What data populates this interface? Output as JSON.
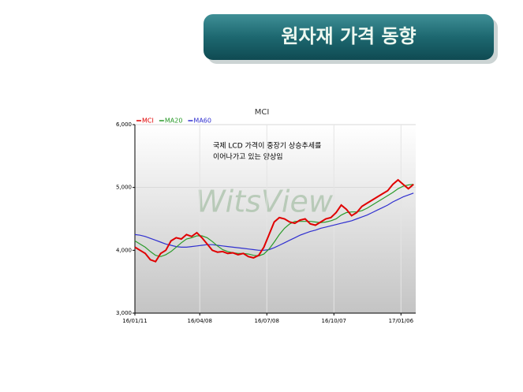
{
  "header": {
    "title": "원자재 가격 동향"
  },
  "chart_data": {
    "type": "line",
    "title": "MCI",
    "watermark": "WitsView",
    "annotations": [
      "국제 LCD 가격이 중장기 상승추세를",
      "이어나가고 있는 양상임"
    ],
    "x": [
      "16/01/11",
      "16/01/18",
      "16/01/25",
      "16/02/01",
      "16/02/08",
      "16/02/15",
      "16/02/22",
      "16/02/29",
      "16/03/07",
      "16/03/14",
      "16/03/21",
      "16/03/28",
      "16/04/04",
      "16/04/11",
      "16/04/18",
      "16/04/25",
      "16/05/02",
      "16/05/09",
      "16/05/16",
      "16/05/23",
      "16/05/30",
      "16/06/06",
      "16/06/13",
      "16/06/20",
      "16/06/27",
      "16/07/04",
      "16/07/11",
      "16/07/18",
      "16/07/25",
      "16/08/01",
      "16/08/08",
      "16/08/15",
      "16/08/22",
      "16/08/29",
      "16/09/05",
      "16/09/12",
      "16/09/19",
      "16/09/26",
      "16/10/03",
      "16/10/10",
      "16/10/17",
      "16/10/24",
      "16/10/31",
      "16/11/07",
      "16/11/14",
      "16/11/21",
      "16/11/28",
      "16/12/05",
      "16/12/12",
      "16/12/19",
      "16/12/26",
      "17/01/02",
      "17/01/09",
      "17/01/16",
      "17/01/23"
    ],
    "series": [
      {
        "name": "MCI",
        "color": "#e00000",
        "values": [
          4050,
          4000,
          3950,
          3850,
          3820,
          3950,
          4000,
          4150,
          4200,
          4180,
          4250,
          4220,
          4280,
          4200,
          4100,
          4000,
          3970,
          3980,
          3950,
          3960,
          3930,
          3950,
          3900,
          3880,
          3920,
          4050,
          4250,
          4450,
          4520,
          4500,
          4450,
          4430,
          4480,
          4500,
          4420,
          4400,
          4450,
          4500,
          4520,
          4600,
          4720,
          4650,
          4550,
          4600,
          4700,
          4750,
          4800,
          4850,
          4900,
          4950,
          5050,
          5120,
          5050,
          4980,
          5050
        ]
      },
      {
        "name": "MA20",
        "color": "#2a9a2a",
        "values": [
          4150,
          4100,
          4050,
          3980,
          3920,
          3900,
          3930,
          3980,
          4050,
          4120,
          4180,
          4200,
          4230,
          4230,
          4200,
          4140,
          4070,
          4010,
          3980,
          3960,
          3950,
          3950,
          3940,
          3920,
          3910,
          3940,
          4020,
          4130,
          4250,
          4350,
          4420,
          4460,
          4460,
          4460,
          4460,
          4450,
          4440,
          4450,
          4470,
          4500,
          4560,
          4600,
          4610,
          4610,
          4630,
          4670,
          4720,
          4770,
          4820,
          4870,
          4920,
          4980,
          5020,
          5040,
          5050
        ]
      },
      {
        "name": "MA60",
        "color": "#3030d0",
        "values": [
          4250,
          4240,
          4220,
          4190,
          4160,
          4130,
          4100,
          4080,
          4060,
          4050,
          4050,
          4060,
          4070,
          4080,
          4090,
          4090,
          4080,
          4070,
          4060,
          4050,
          4040,
          4030,
          4020,
          4010,
          4000,
          4000,
          4010,
          4040,
          4080,
          4120,
          4160,
          4200,
          4240,
          4270,
          4300,
          4320,
          4350,
          4370,
          4390,
          4410,
          4430,
          4450,
          4470,
          4500,
          4530,
          4560,
          4600,
          4640,
          4680,
          4720,
          4770,
          4810,
          4850,
          4880,
          4910
        ]
      }
    ],
    "xlim": [
      "16/01/11",
      "17/01/26"
    ],
    "xticks": [
      "16/01/11",
      "16/04/08",
      "16/07/08",
      "16/10/07",
      "17/01/06"
    ],
    "ylim": [
      3000,
      6000
    ],
    "yticks": [
      {
        "value": 3000,
        "label": "3,000"
      },
      {
        "value": 4000,
        "label": "4,000"
      },
      {
        "value": 5000,
        "label": "5,000"
      },
      {
        "value": 6000,
        "label": "6,000"
      }
    ],
    "grid": true,
    "legend": "top-left"
  }
}
